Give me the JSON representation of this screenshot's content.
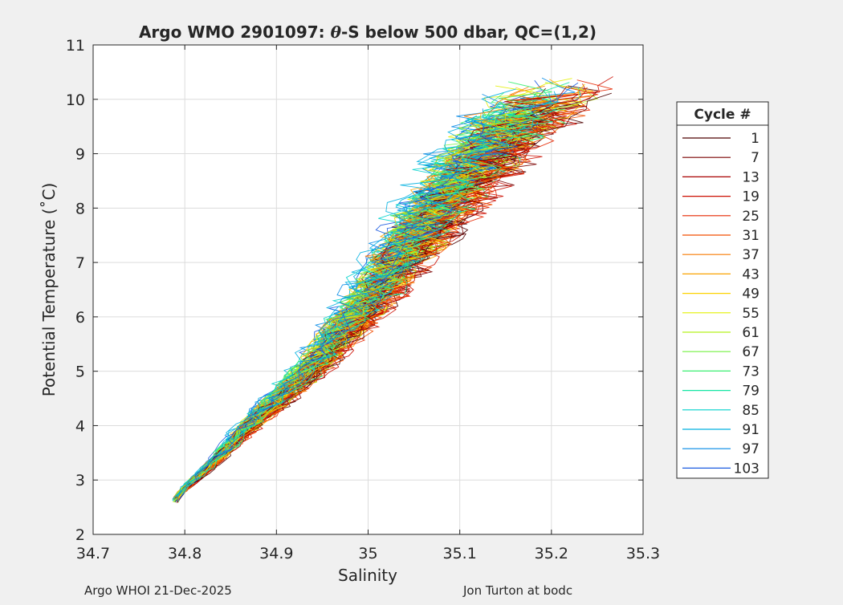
{
  "chart_data": {
    "type": "line",
    "title": "Argo WMO 2901097: θ-S below 500 dbar,  QC=(1,2)",
    "title_parts": {
      "prefix": "Argo WMO 2901097: ",
      "theta": "θ",
      "suffix": "-S below 500 dbar,  QC=(1,2)"
    },
    "xlabel": "Salinity",
    "ylabel": "Potential Temperature (˚C)",
    "xlim": [
      34.7,
      35.3
    ],
    "ylim": [
      2,
      11
    ],
    "x_ticks": [
      34.7,
      34.8,
      34.9,
      35.0,
      35.1,
      35.2,
      35.3
    ],
    "x_tick_labels": [
      "34.7",
      "34.8",
      "34.9",
      "35",
      "35.1",
      "35.2",
      "35.3"
    ],
    "y_ticks": [
      2,
      3,
      4,
      5,
      6,
      7,
      8,
      9,
      10,
      11
    ],
    "y_tick_labels": [
      "2",
      "3",
      "4",
      "5",
      "6",
      "7",
      "8",
      "9",
      "10",
      "11"
    ],
    "grid": true,
    "legend": {
      "title": "Cycle #",
      "placement": "outside-right",
      "entries": [
        {
          "label": "1",
          "color": "#4d0000"
        },
        {
          "label": "7",
          "color": "#7a0000"
        },
        {
          "label": "13",
          "color": "#a80000"
        },
        {
          "label": "19",
          "color": "#cc0d00"
        },
        {
          "label": "25",
          "color": "#e62600"
        },
        {
          "label": "31",
          "color": "#f24d00"
        },
        {
          "label": "37",
          "color": "#f77a00"
        },
        {
          "label": "43",
          "color": "#faa300"
        },
        {
          "label": "49",
          "color": "#fcd200"
        },
        {
          "label": "55",
          "color": "#e3f000"
        },
        {
          "label": "61",
          "color": "#b3f21a"
        },
        {
          "label": "67",
          "color": "#73f240"
        },
        {
          "label": "73",
          "color": "#3df073"
        },
        {
          "label": "79",
          "color": "#14e6a3"
        },
        {
          "label": "85",
          "color": "#00d1cc"
        },
        {
          "label": "91",
          "color": "#00b0e0"
        },
        {
          "label": "97",
          "color": "#0088e6"
        },
        {
          "label": "103",
          "color": "#1a5ae0"
        }
      ]
    },
    "trend_profile": [
      {
        "s": 34.79,
        "t": 2.65
      },
      {
        "s": 34.8,
        "t": 2.85
      },
      {
        "s": 34.83,
        "t": 3.3
      },
      {
        "s": 34.87,
        "t": 4.0
      },
      {
        "s": 34.91,
        "t": 4.6
      },
      {
        "s": 34.945,
        "t": 5.2
      },
      {
        "s": 34.98,
        "t": 5.9
      },
      {
        "s": 35.01,
        "t": 6.5
      },
      {
        "s": 35.04,
        "t": 7.2
      },
      {
        "s": 35.07,
        "t": 7.9
      },
      {
        "s": 35.1,
        "t": 8.5
      },
      {
        "s": 35.13,
        "t": 9.1
      },
      {
        "s": 35.16,
        "t": 9.6
      },
      {
        "s": 35.19,
        "t": 10.1
      }
    ]
  },
  "footer": {
    "left": "Argo WHOI 21-Dec-2025",
    "right": "Jon Turton at bodc"
  }
}
